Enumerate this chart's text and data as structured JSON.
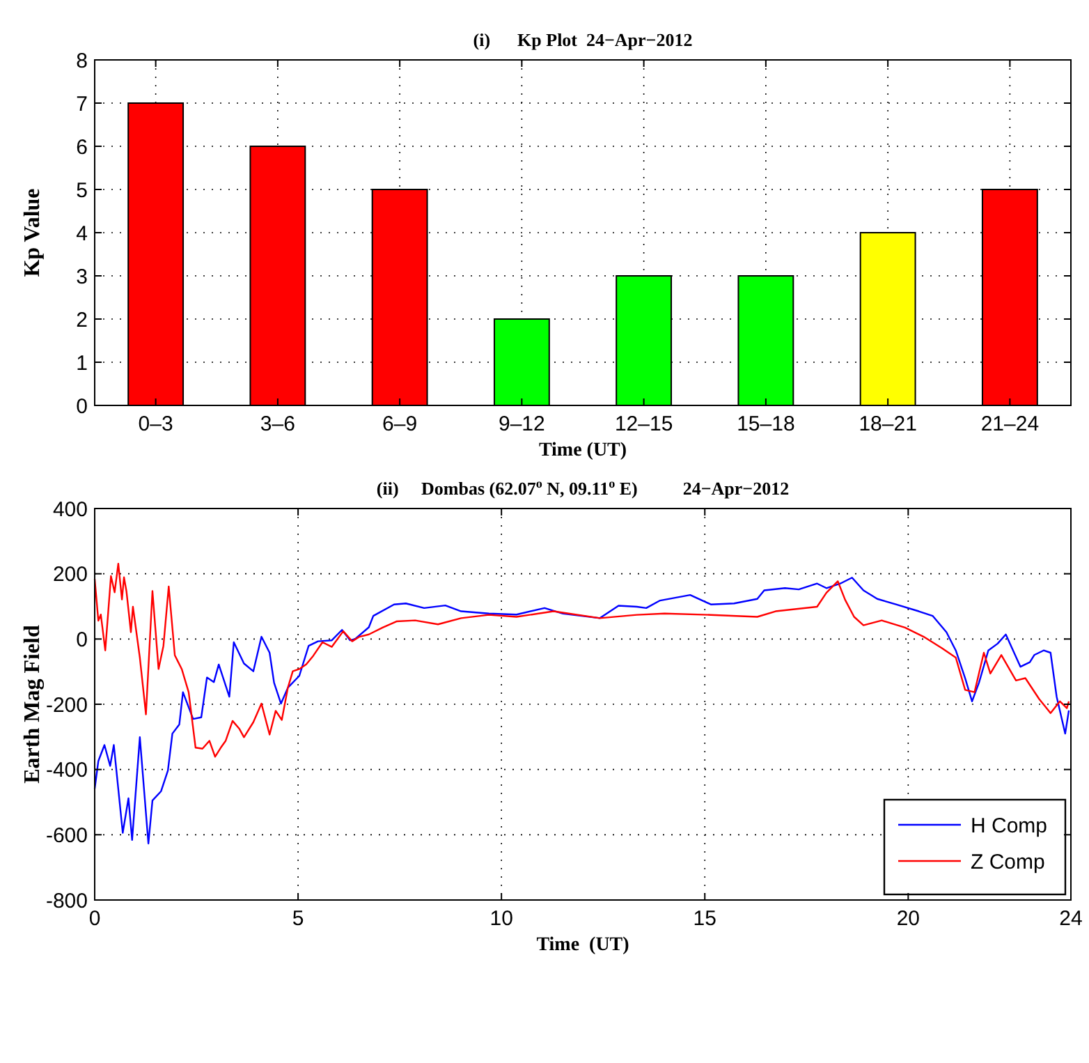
{
  "chart_data": [
    {
      "type": "bar",
      "title": "(i)      Kp Plot  24−Apr−2012",
      "xlabel": "Time (UT)",
      "ylabel": "Kp Value",
      "categories": [
        "0–3",
        "3–6",
        "6–9",
        "9–12",
        "12–15",
        "15–18",
        "18–21",
        "21–24"
      ],
      "values": [
        7,
        6,
        5,
        2,
        3,
        3,
        4,
        5
      ],
      "colors": [
        "#ff0000",
        "#ff0000",
        "#ff0000",
        "#00ff00",
        "#00ff00",
        "#00ff00",
        "#ffff00",
        "#ff0000"
      ],
      "ylim": [
        0,
        8
      ],
      "yticks": [
        0,
        1,
        2,
        3,
        4,
        5,
        6,
        7,
        8
      ],
      "grid": true
    },
    {
      "type": "line",
      "title": "(ii)     Dombas (62.07$^{o}$ N, 09.11$^{o}$ E)          24−Apr−2012",
      "xlabel": "Time  (UT)",
      "ylabel": "Earth Mag Field",
      "xlim": [
        0,
        24
      ],
      "xticks": [
        0,
        5,
        10,
        15,
        20,
        24
      ],
      "ylim": [
        -800,
        400
      ],
      "yticks": [
        -800,
        -600,
        -400,
        -200,
        0,
        200,
        400
      ],
      "grid": true,
      "legend": "bottom right",
      "line_style": "solid",
      "marker": "none",
      "series": [
        {
          "name": "H Comp",
          "color": "#0000ff",
          "x": [
            0,
            0.09,
            0.24,
            0.38,
            0.47,
            0.69,
            0.83,
            0.92,
            1.11,
            1.32,
            1.42,
            1.63,
            1.8,
            1.91,
            2.08,
            2.17,
            2.42,
            2.62,
            2.76,
            2.93,
            3.05,
            3.31,
            3.42,
            3.67,
            3.9,
            4.1,
            4.3,
            4.41,
            4.58,
            4.75,
            5.03,
            5.26,
            5.49,
            5.83,
            6.08,
            6.28,
            6.4,
            6.74,
            6.85,
            7.36,
            7.65,
            8.1,
            8.62,
            9.01,
            9.69,
            10.37,
            11.06,
            11.51,
            12.42,
            12.88,
            13.33,
            13.56,
            13.9,
            14.64,
            15.15,
            15.72,
            16.29,
            16.46,
            16.97,
            17.31,
            17.76,
            17.99,
            18.33,
            18.62,
            18.9,
            19.24,
            19.7,
            20.26,
            20.6,
            20.94,
            21.17,
            21.4,
            21.57,
            21.74,
            21.97,
            22.2,
            22.4,
            22.76,
            22.99,
            23.1,
            23.33,
            23.5,
            23.65,
            23.86,
            23.95
          ],
          "values": [
            -459,
            -374,
            -325,
            -389,
            -325,
            -594,
            -488,
            -616,
            -301,
            -627,
            -495,
            -467,
            -403,
            -290,
            -262,
            -163,
            -245,
            -240,
            -118,
            -132,
            -78,
            -177,
            -10,
            -75,
            -99,
            7,
            -42,
            -134,
            -198,
            -149,
            -113,
            -21,
            -7,
            -4,
            28,
            -4,
            0,
            36,
            71,
            106,
            109,
            95,
            103,
            85,
            78,
            75,
            95,
            78,
            64,
            102,
            99,
            95,
            118,
            135,
            106,
            109,
            123,
            149,
            156,
            152,
            170,
            156,
            170,
            188,
            149,
            123,
            106,
            85,
            71,
            21,
            -35,
            -120,
            -191,
            -134,
            -35,
            -14,
            14,
            -85,
            -71,
            -49,
            -35,
            -42,
            -177,
            -290,
            -219
          ]
        },
        {
          "name": "Z Comp",
          "color": "#ff0000",
          "x": [
            0,
            0.09,
            0.15,
            0.26,
            0.4,
            0.49,
            0.58,
            0.67,
            0.72,
            0.78,
            0.89,
            0.94,
            1.11,
            1.26,
            1.42,
            1.57,
            1.69,
            1.82,
            1.97,
            2.14,
            2.31,
            2.48,
            2.65,
            2.82,
            2.96,
            3.1,
            3.22,
            3.39,
            3.56,
            3.67,
            3.9,
            4.1,
            4.3,
            4.45,
            4.6,
            4.75,
            4.87,
            5.03,
            5.2,
            5.37,
            5.6,
            5.83,
            6.11,
            6.33,
            6.51,
            6.74,
            7.08,
            7.42,
            7.88,
            8.44,
            9.01,
            9.69,
            10.37,
            11.28,
            12.42,
            13.33,
            14.01,
            15.15,
            16.29,
            16.74,
            17.76,
            17.99,
            18.27,
            18.45,
            18.67,
            18.9,
            19.35,
            19.92,
            20.38,
            20.83,
            21.17,
            21.4,
            21.63,
            21.86,
            22.02,
            22.29,
            22.65,
            22.88,
            23.22,
            23.5,
            23.73,
            23.9,
            23.95
          ],
          "values": [
            184,
            56,
            75,
            -35,
            193,
            143,
            231,
            121,
            189,
            147,
            21,
            99,
            -57,
            -231,
            147,
            -92,
            -21,
            161,
            -50,
            -92,
            -163,
            -333,
            -336,
            -312,
            -361,
            -333,
            -312,
            -251,
            -276,
            -301,
            -255,
            -198,
            -293,
            -220,
            -248,
            -149,
            -99,
            -92,
            -78,
            -52,
            -10,
            -24,
            24,
            -7,
            7,
            14,
            35,
            54,
            57,
            45,
            64,
            74,
            68,
            85,
            64,
            74,
            78,
            74,
            68,
            85,
            99,
            142,
            177,
            120,
            68,
            42,
            57,
            35,
            7,
            -28,
            -57,
            -156,
            -163,
            -42,
            -106,
            -49,
            -127,
            -120,
            -184,
            -227,
            -191,
            -212,
            -191
          ]
        }
      ]
    }
  ]
}
